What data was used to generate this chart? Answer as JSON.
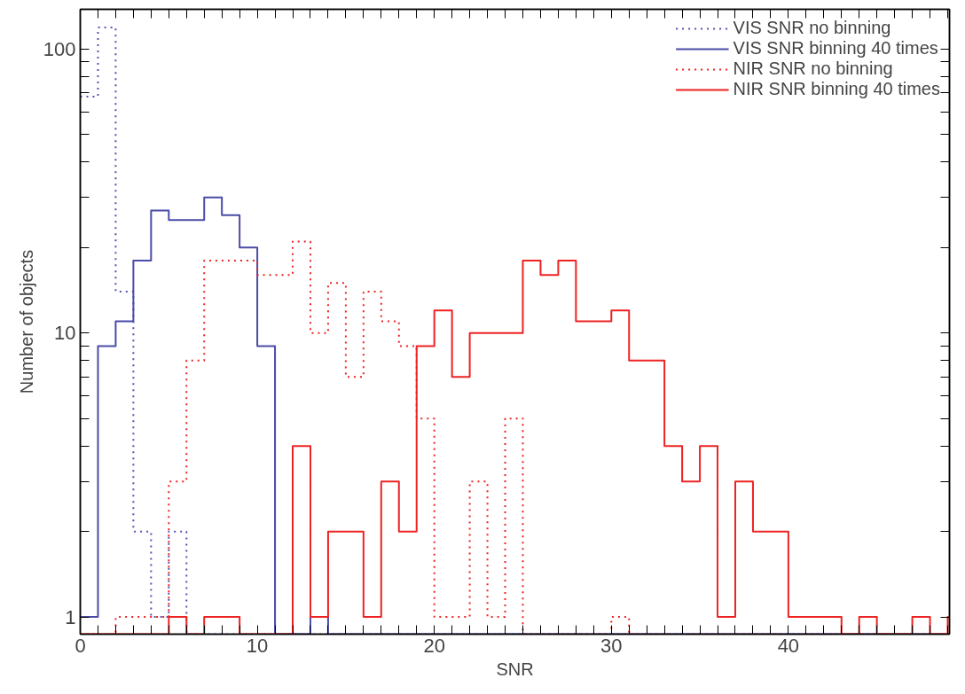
{
  "chart_data": {
    "type": "histogram",
    "xlabel": "SNR",
    "ylabel": "Number of objects",
    "log": "y",
    "bins": [
      0,
      1,
      2,
      3,
      4,
      5,
      6,
      7,
      8,
      9,
      10,
      11,
      12,
      13,
      14,
      15,
      16,
      17,
      18,
      19,
      20,
      21,
      22,
      23,
      24,
      25,
      26,
      27,
      28,
      29,
      30,
      31,
      32,
      33,
      34,
      35,
      36,
      37,
      38,
      39,
      40,
      41,
      42,
      43,
      44,
      45,
      46,
      47,
      48,
      49,
      50
    ],
    "xlim": [
      0,
      49.1
    ],
    "ylim": [
      0.87,
      138
    ],
    "xticks": [
      0,
      {
        "value": 1,
        "label": null
      },
      {
        "value": 2,
        "label": null
      },
      {
        "value": 3,
        "label": null
      },
      {
        "value": 4,
        "label": null
      },
      {
        "value": 5,
        "label": null
      },
      {
        "value": 6,
        "label": null
      },
      {
        "value": 7,
        "label": null
      },
      {
        "value": 8,
        "label": null
      },
      {
        "value": 9,
        "label": null
      },
      10,
      {
        "value": 11,
        "label": null
      },
      {
        "value": 12,
        "label": null
      },
      {
        "value": 13,
        "label": null
      },
      {
        "value": 14,
        "label": null
      },
      {
        "value": 15,
        "label": null
      },
      {
        "value": 16,
        "label": null
      },
      {
        "value": 17,
        "label": null
      },
      {
        "value": 18,
        "label": null
      },
      {
        "value": 19,
        "label": null
      },
      20,
      {
        "value": 21,
        "label": null
      },
      {
        "value": 22,
        "label": null
      },
      {
        "value": 23,
        "label": null
      },
      {
        "value": 24,
        "label": null
      },
      {
        "value": 25,
        "label": null
      },
      {
        "value": 26,
        "label": null
      },
      {
        "value": 27,
        "label": null
      },
      {
        "value": 28,
        "label": null
      },
      {
        "value": 29,
        "label": null
      },
      30,
      {
        "value": 31,
        "label": null
      },
      {
        "value": 32,
        "label": null
      },
      {
        "value": 33,
        "label": null
      },
      {
        "value": 34,
        "label": null
      },
      {
        "value": 35,
        "label": null
      },
      {
        "value": 36,
        "label": null
      },
      {
        "value": 37,
        "label": null
      },
      {
        "value": 38,
        "label": null
      },
      {
        "value": 39,
        "label": null
      },
      40,
      {
        "value": 41,
        "label": null
      },
      {
        "value": 42,
        "label": null
      },
      {
        "value": 43,
        "label": null
      },
      {
        "value": 44,
        "label": null
      },
      {
        "value": 45,
        "label": null
      },
      {
        "value": 46,
        "label": null
      },
      {
        "value": 47,
        "label": null
      },
      {
        "value": 48,
        "label": null
      },
      {
        "value": 49,
        "label": null
      }
    ],
    "yticks": [
      1,
      {
        "value": 2,
        "label": null
      },
      {
        "value": 3,
        "label": null
      },
      {
        "value": 4,
        "label": null
      },
      {
        "value": 5,
        "label": null
      },
      {
        "value": 6,
        "label": null
      },
      {
        "value": 7,
        "label": null
      },
      {
        "value": 8,
        "label": null
      },
      {
        "value": 9,
        "label": null
      },
      10,
      {
        "value": 20,
        "label": null
      },
      {
        "value": 30,
        "label": null
      },
      {
        "value": 40,
        "label": null
      },
      {
        "value": 50,
        "label": null
      },
      {
        "value": 60,
        "label": null
      },
      {
        "value": 70,
        "label": null
      },
      {
        "value": 80,
        "label": null
      },
      {
        "value": 90,
        "label": null
      },
      100
    ],
    "legend": "top right",
    "series": [
      {
        "name": "VIS SNR no binning",
        "color": "#5252b0",
        "line_style": "dotted",
        "values": [
          68,
          119,
          14,
          2,
          1,
          2,
          null,
          null,
          null,
          null,
          null,
          null,
          null,
          null,
          null,
          null,
          null,
          null,
          null,
          null,
          null,
          null,
          null,
          null,
          null,
          null,
          null,
          null,
          null,
          null,
          null,
          null,
          null,
          null,
          null,
          null,
          null,
          null,
          null,
          null,
          null,
          null,
          null,
          null,
          null,
          null,
          null,
          null,
          null,
          null
        ]
      },
      {
        "name": "VIS SNR binning 40 times",
        "color": "#4b4ba8",
        "line_style": "solid",
        "values": [
          1,
          9,
          11,
          18,
          27,
          25,
          25,
          30,
          26,
          20,
          9,
          null,
          null,
          1,
          null,
          null,
          null,
          null,
          null,
          null,
          null,
          null,
          null,
          null,
          null,
          null,
          null,
          null,
          null,
          null,
          null,
          null,
          null,
          null,
          null,
          null,
          null,
          null,
          null,
          null,
          null,
          null,
          null,
          null,
          null,
          null,
          null,
          null,
          null,
          null
        ]
      },
      {
        "name": "NIR SNR no binning",
        "color": "#ee2222",
        "line_style": "dotted",
        "values": [
          null,
          null,
          1,
          1,
          1,
          3,
          8,
          18,
          18,
          18,
          16,
          16,
          21,
          10,
          15,
          7,
          14,
          11,
          9,
          5,
          1,
          1,
          3,
          1,
          5,
          null,
          null,
          null,
          null,
          null,
          1,
          null,
          null,
          null,
          null,
          null,
          null,
          null,
          null,
          null,
          null,
          null,
          null,
          null,
          null,
          null,
          null,
          null,
          null,
          null
        ]
      },
      {
        "name": "NIR SNR binning 40 times",
        "color": "#ee2222",
        "line_style": "solid",
        "values": [
          null,
          null,
          null,
          null,
          null,
          1,
          null,
          1,
          1,
          null,
          null,
          null,
          4,
          1,
          2,
          2,
          1,
          3,
          2,
          9,
          12,
          7,
          10,
          10,
          10,
          18,
          16,
          18,
          11,
          11,
          12,
          8,
          8,
          4,
          3,
          4,
          1,
          3,
          2,
          2,
          1,
          1,
          1,
          null,
          1,
          null,
          null,
          1,
          null,
          1
        ]
      }
    ]
  }
}
